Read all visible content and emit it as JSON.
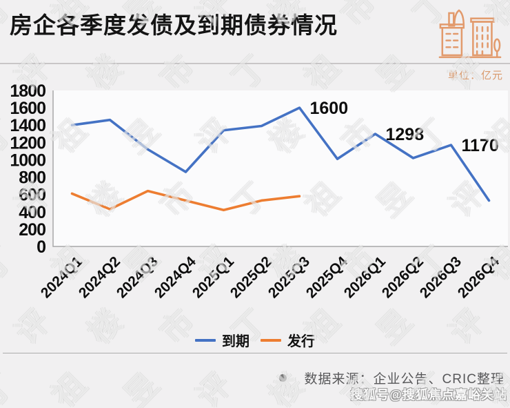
{
  "header": {
    "title": "房企各季度发债及到期债券情况"
  },
  "chart_data": {
    "type": "line",
    "title": "房企各季度发债及到期债券情况",
    "unit": "单位：亿元",
    "categories": [
      "2024Q1",
      "2024Q2",
      "2024Q3",
      "2024Q4",
      "2025Q1",
      "2025Q2",
      "2025Q3",
      "2025Q4",
      "2026Q1",
      "2026Q2",
      "2026Q3",
      "2026Q4"
    ],
    "series": [
      {
        "name": "到期",
        "color": "#4472C4",
        "values": [
          1400,
          1460,
          1120,
          860,
          1340,
          1390,
          1600,
          1010,
          1298,
          1020,
          1170,
          530
        ]
      },
      {
        "name": "发行",
        "color": "#ED7D31",
        "values": [
          610,
          430,
          640,
          530,
          420,
          530,
          580,
          null,
          null,
          null,
          null,
          null
        ]
      }
    ],
    "ylim": [
      0,
      1800
    ],
    "ytick_step": 200,
    "grid": false,
    "legend_position": "bottom",
    "data_labels": [
      {
        "series": 0,
        "index": 6,
        "text": "1600"
      },
      {
        "series": 0,
        "index": 8,
        "text": "1298"
      },
      {
        "series": 0,
        "index": 10,
        "text": "1170"
      }
    ]
  },
  "footer": {
    "source": "数据来源：企业公告、CRIC整理",
    "watermark": "搜狐号@搜狐焦点嘉峪关站"
  },
  "background_watermark": "丁祖昱评楼市",
  "colors": {
    "accent_orange": "#DD9768",
    "axis": "#A8A8A8",
    "text": "#0D0D0D",
    "source_text": "#58585A"
  }
}
